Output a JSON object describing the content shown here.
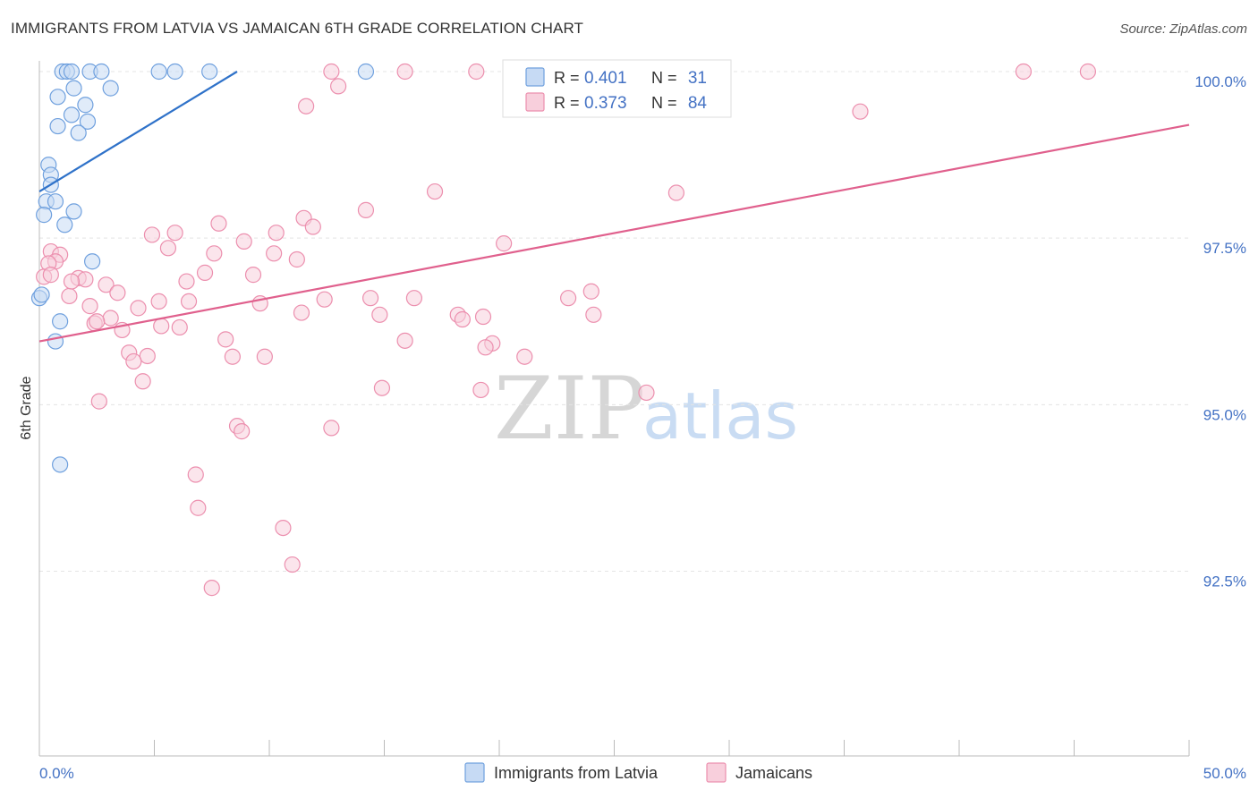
{
  "header": {
    "title": "IMMIGRANTS FROM LATVIA VS JAMAICAN 6TH GRADE CORRELATION CHART",
    "source": "Source: ZipAtlas.com"
  },
  "watermark": {
    "zip": "ZIP",
    "atlas": "atlas"
  },
  "chart_data": {
    "type": "scatter",
    "title": "IMMIGRANTS FROM LATVIA VS JAMAICAN 6TH GRADE CORRELATION CHART",
    "xlabel": "",
    "ylabel": "6th Grade",
    "xlim": [
      0,
      50
    ],
    "ylim": [
      90.2,
      100.5
    ],
    "x_tick_labels": [
      {
        "value": 0,
        "label": "0.0%"
      },
      {
        "value": 50,
        "label": "50.0%"
      }
    ],
    "y_tick_labels": [
      {
        "value": 100.0,
        "label": "100.0%"
      },
      {
        "value": 97.5,
        "label": "97.5%"
      },
      {
        "value": 95.0,
        "label": "95.0%"
      },
      {
        "value": 92.5,
        "label": "92.5%"
      }
    ],
    "legend": {
      "position": "top-center",
      "entries": [
        {
          "series": "Immigrants from Latvia",
          "r_label": "R =",
          "r_value": "0.401",
          "n_label": "N =",
          "n_value": "31"
        },
        {
          "series": "Jamaicans",
          "r_label": "R =",
          "r_value": "0.373",
          "n_label": "N =",
          "n_value": "84"
        }
      ]
    },
    "series": [
      {
        "name": "Immigrants from Latvia",
        "color": "#6fa0de",
        "fill": "#c6daf4",
        "line_color": "#2f72c9",
        "trend": {
          "x": [
            0.0,
            8.6
          ],
          "y": [
            98.2,
            100.0
          ]
        },
        "points": [
          {
            "x": 1.0,
            "y": 100.0
          },
          {
            "x": 1.2,
            "y": 100.0
          },
          {
            "x": 1.4,
            "y": 100.0
          },
          {
            "x": 2.2,
            "y": 100.0
          },
          {
            "x": 2.7,
            "y": 100.0
          },
          {
            "x": 5.2,
            "y": 100.0
          },
          {
            "x": 5.9,
            "y": 100.0
          },
          {
            "x": 7.4,
            "y": 100.0
          },
          {
            "x": 14.2,
            "y": 100.0
          },
          {
            "x": 1.5,
            "y": 99.75
          },
          {
            "x": 3.1,
            "y": 99.75
          },
          {
            "x": 0.8,
            "y": 99.62
          },
          {
            "x": 2.0,
            "y": 99.5
          },
          {
            "x": 1.4,
            "y": 99.35
          },
          {
            "x": 2.1,
            "y": 99.25
          },
          {
            "x": 0.8,
            "y": 99.18
          },
          {
            "x": 1.7,
            "y": 99.08
          },
          {
            "x": 0.4,
            "y": 98.6
          },
          {
            "x": 0.5,
            "y": 98.45
          },
          {
            "x": 0.5,
            "y": 98.3
          },
          {
            "x": 0.3,
            "y": 98.05
          },
          {
            "x": 0.7,
            "y": 98.05
          },
          {
            "x": 1.5,
            "y": 97.9
          },
          {
            "x": 0.2,
            "y": 97.85
          },
          {
            "x": 1.1,
            "y": 97.7
          },
          {
            "x": 2.3,
            "y": 97.15
          },
          {
            "x": 0.0,
            "y": 96.6
          },
          {
            "x": 0.9,
            "y": 96.25
          },
          {
            "x": 0.7,
            "y": 95.95
          },
          {
            "x": 0.9,
            "y": 94.1
          },
          {
            "x": 0.1,
            "y": 96.65
          }
        ]
      },
      {
        "name": "Jamaicans",
        "color": "#ec8fae",
        "fill": "#f8cfdc",
        "line_color": "#e0608d",
        "trend": {
          "x": [
            0.0,
            50.0
          ],
          "y": [
            95.95,
            99.2
          ]
        },
        "points": [
          {
            "x": 12.7,
            "y": 100.0
          },
          {
            "x": 15.9,
            "y": 100.0
          },
          {
            "x": 19.0,
            "y": 100.0
          },
          {
            "x": 26.8,
            "y": 100.0
          },
          {
            "x": 42.8,
            "y": 100.0
          },
          {
            "x": 45.6,
            "y": 100.0
          },
          {
            "x": 13.0,
            "y": 99.78
          },
          {
            "x": 11.6,
            "y": 99.48
          },
          {
            "x": 35.7,
            "y": 99.4
          },
          {
            "x": 17.2,
            "y": 98.2
          },
          {
            "x": 27.7,
            "y": 98.18
          },
          {
            "x": 14.2,
            "y": 97.92
          },
          {
            "x": 11.5,
            "y": 97.8
          },
          {
            "x": 7.8,
            "y": 97.72
          },
          {
            "x": 11.9,
            "y": 97.67
          },
          {
            "x": 5.9,
            "y": 97.58
          },
          {
            "x": 10.3,
            "y": 97.58
          },
          {
            "x": 4.9,
            "y": 97.55
          },
          {
            "x": 8.9,
            "y": 97.45
          },
          {
            "x": 20.2,
            "y": 97.42
          },
          {
            "x": 5.6,
            "y": 97.35
          },
          {
            "x": 7.6,
            "y": 97.27
          },
          {
            "x": 10.2,
            "y": 97.27
          },
          {
            "x": 11.2,
            "y": 97.18
          },
          {
            "x": 0.5,
            "y": 97.3
          },
          {
            "x": 0.9,
            "y": 97.25
          },
          {
            "x": 0.7,
            "y": 97.15
          },
          {
            "x": 0.4,
            "y": 97.12
          },
          {
            "x": 7.2,
            "y": 96.98
          },
          {
            "x": 9.3,
            "y": 96.95
          },
          {
            "x": 0.2,
            "y": 96.92
          },
          {
            "x": 1.7,
            "y": 96.9
          },
          {
            "x": 2.0,
            "y": 96.88
          },
          {
            "x": 6.4,
            "y": 96.85
          },
          {
            "x": 2.9,
            "y": 96.8
          },
          {
            "x": 24.0,
            "y": 96.7
          },
          {
            "x": 3.4,
            "y": 96.68
          },
          {
            "x": 1.3,
            "y": 96.63
          },
          {
            "x": 14.4,
            "y": 96.6
          },
          {
            "x": 16.3,
            "y": 96.6
          },
          {
            "x": 23.0,
            "y": 96.6
          },
          {
            "x": 12.4,
            "y": 96.58
          },
          {
            "x": 5.2,
            "y": 96.55
          },
          {
            "x": 6.5,
            "y": 96.55
          },
          {
            "x": 9.6,
            "y": 96.52
          },
          {
            "x": 2.2,
            "y": 96.48
          },
          {
            "x": 4.3,
            "y": 96.45
          },
          {
            "x": 11.4,
            "y": 96.38
          },
          {
            "x": 14.8,
            "y": 96.35
          },
          {
            "x": 18.2,
            "y": 96.35
          },
          {
            "x": 24.1,
            "y": 96.35
          },
          {
            "x": 19.3,
            "y": 96.32
          },
          {
            "x": 18.4,
            "y": 96.28
          },
          {
            "x": 3.1,
            "y": 96.3
          },
          {
            "x": 2.4,
            "y": 96.22
          },
          {
            "x": 5.3,
            "y": 96.18
          },
          {
            "x": 6.1,
            "y": 96.16
          },
          {
            "x": 3.6,
            "y": 96.12
          },
          {
            "x": 8.1,
            "y": 95.98
          },
          {
            "x": 15.9,
            "y": 95.96
          },
          {
            "x": 19.7,
            "y": 95.92
          },
          {
            "x": 19.4,
            "y": 95.86
          },
          {
            "x": 3.9,
            "y": 95.78
          },
          {
            "x": 4.7,
            "y": 95.73
          },
          {
            "x": 8.4,
            "y": 95.72
          },
          {
            "x": 9.8,
            "y": 95.72
          },
          {
            "x": 21.1,
            "y": 95.72
          },
          {
            "x": 4.1,
            "y": 95.65
          },
          {
            "x": 4.5,
            "y": 95.35
          },
          {
            "x": 14.9,
            "y": 95.25
          },
          {
            "x": 19.2,
            "y": 95.22
          },
          {
            "x": 26.4,
            "y": 95.18
          },
          {
            "x": 2.6,
            "y": 95.05
          },
          {
            "x": 8.6,
            "y": 94.68
          },
          {
            "x": 12.7,
            "y": 94.65
          },
          {
            "x": 8.8,
            "y": 94.6
          },
          {
            "x": 6.8,
            "y": 93.95
          },
          {
            "x": 6.9,
            "y": 93.45
          },
          {
            "x": 10.6,
            "y": 93.15
          },
          {
            "x": 11.0,
            "y": 92.6
          },
          {
            "x": 7.5,
            "y": 92.25
          },
          {
            "x": 0.5,
            "y": 96.95
          },
          {
            "x": 1.4,
            "y": 96.85
          },
          {
            "x": 2.5,
            "y": 96.25
          }
        ]
      }
    ]
  }
}
